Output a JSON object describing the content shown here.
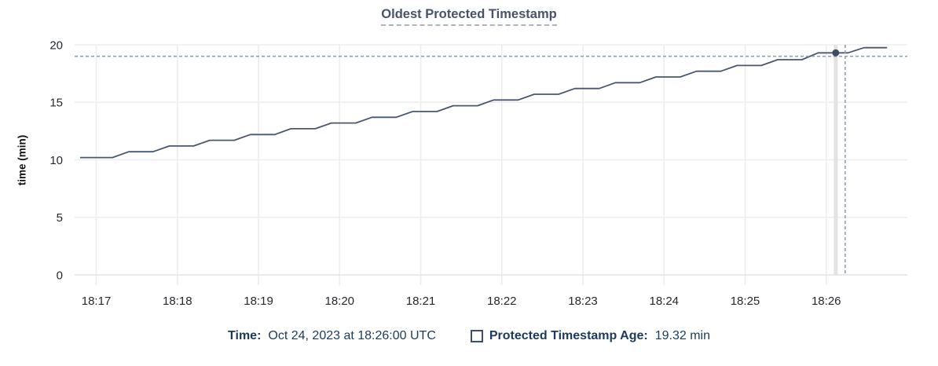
{
  "chart_data": {
    "type": "line",
    "title": "Oldest Protected Timestamp",
    "ylabel": "time (min)",
    "xlabel": "",
    "grid": true,
    "x_tick_labels": [
      "18:17",
      "18:18",
      "18:19",
      "18:20",
      "18:21",
      "18:22",
      "18:23",
      "18:24",
      "18:25",
      "18:26"
    ],
    "x_tick_step_seconds": 60,
    "x_domain_seconds": [
      -16,
      600
    ],
    "y_ticks": [
      0,
      5,
      10,
      15,
      20
    ],
    "y_domain": [
      0,
      20
    ],
    "series": [
      {
        "name": "Protected Timestamp Age",
        "color": "#475872",
        "points_t_seconds_value_min": [
          [
            -12,
            10.2
          ],
          [
            12,
            10.2
          ],
          [
            24,
            10.7
          ],
          [
            42,
            10.7
          ],
          [
            54,
            11.2
          ],
          [
            72,
            11.2
          ],
          [
            84,
            11.7
          ],
          [
            102,
            11.7
          ],
          [
            114,
            12.2
          ],
          [
            132,
            12.2
          ],
          [
            144,
            12.7
          ],
          [
            162,
            12.7
          ],
          [
            174,
            13.2
          ],
          [
            192,
            13.2
          ],
          [
            204,
            13.7
          ],
          [
            222,
            13.7
          ],
          [
            234,
            14.2
          ],
          [
            252,
            14.2
          ],
          [
            264,
            14.7
          ],
          [
            282,
            14.7
          ],
          [
            294,
            15.2
          ],
          [
            312,
            15.2
          ],
          [
            324,
            15.7
          ],
          [
            342,
            15.7
          ],
          [
            354,
            16.2
          ],
          [
            372,
            16.2
          ],
          [
            384,
            16.7
          ],
          [
            402,
            16.7
          ],
          [
            414,
            17.2
          ],
          [
            432,
            17.2
          ],
          [
            444,
            17.7
          ],
          [
            462,
            17.7
          ],
          [
            474,
            18.2
          ],
          [
            492,
            18.2
          ],
          [
            504,
            18.7
          ],
          [
            522,
            18.7
          ],
          [
            534,
            19.3
          ],
          [
            556,
            19.3
          ],
          [
            568,
            19.75
          ],
          [
            585,
            19.75
          ]
        ]
      }
    ],
    "crosshair": {
      "point_t_seconds": 547,
      "point_value_min": 19.3,
      "mouse_t_seconds": 554,
      "mouse_value_min": 19.0
    }
  },
  "legend": {
    "time_label": "Time:",
    "time_value": "Oct 24, 2023 at 18:26:00 UTC",
    "series_label": "Protected Timestamp Age:",
    "series_value": "19.32 min"
  },
  "colors": {
    "accent_line": "#475872",
    "dot": "#3e4d67",
    "legend_text": "#1b3a5e",
    "title_text": "#46536b",
    "grid": "#ededef",
    "axis_line": "#e3e3e5",
    "tick_text": "#24282f",
    "crosshair_dashed": "#8ca2b1",
    "hover_band": "#e3e3e3"
  }
}
